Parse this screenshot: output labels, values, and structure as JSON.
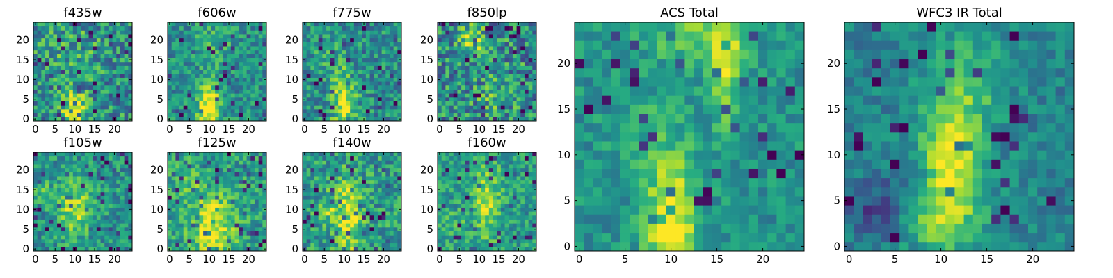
{
  "figure": {
    "colormap": "viridis",
    "color_stops": [
      "#440154",
      "#3b528b",
      "#21918c",
      "#5ec962",
      "#fde725"
    ]
  },
  "chart_data": [
    {
      "type": "heatmap",
      "title": "f435w",
      "grid": "25x25 pixel cutout",
      "xlim": [
        0,
        24
      ],
      "ylim": [
        0,
        24
      ],
      "x_ticks": [
        "0",
        "5",
        "10",
        "15",
        "20"
      ],
      "y_ticks": [
        "0",
        "5",
        "10",
        "15",
        "20"
      ],
      "source_center": [
        10,
        2
      ],
      "features": "noisy background, faint compact source at bottom center"
    },
    {
      "type": "heatmap",
      "title": "f606w",
      "grid": "25x25 pixel cutout",
      "xlim": [
        0,
        24
      ],
      "ylim": [
        0,
        24
      ],
      "x_ticks": [
        "0",
        "5",
        "10",
        "15",
        "20"
      ],
      "y_ticks": [
        "0",
        "5",
        "10",
        "15",
        "20"
      ],
      "source_center": [
        10,
        3
      ],
      "features": "bright source extending upward from bottom center"
    },
    {
      "type": "heatmap",
      "title": "f775w",
      "grid": "25x25 pixel cutout",
      "xlim": [
        0,
        24
      ],
      "ylim": [
        0,
        24
      ],
      "x_ticks": [
        "0",
        "5",
        "10",
        "15",
        "20"
      ],
      "y_ticks": [
        "0",
        "5",
        "10",
        "15",
        "20"
      ],
      "source_center": [
        10,
        3
      ],
      "features": "extended source along x ~ 10"
    },
    {
      "type": "heatmap",
      "title": "f850lp",
      "grid": "25x25 pixel cutout",
      "xlim": [
        0,
        24
      ],
      "ylim": [
        0,
        24
      ],
      "x_ticks": [
        "0",
        "5",
        "10",
        "15",
        "20"
      ],
      "y_ticks": [
        "0",
        "5",
        "10",
        "15",
        "20"
      ],
      "source_center": [
        8,
        20
      ],
      "features": "very noisy, patchy bright pixels"
    },
    {
      "type": "heatmap",
      "title": "f105w",
      "grid": "25x25 pixel cutout",
      "xlim": [
        0,
        24
      ],
      "ylim": [
        0,
        24
      ],
      "x_ticks": [
        "0",
        "5",
        "10",
        "15",
        "20"
      ],
      "y_ticks": [
        "0",
        "5",
        "10",
        "15",
        "20"
      ],
      "source_center": [
        10,
        10
      ],
      "features": "diffuse source near center"
    },
    {
      "type": "heatmap",
      "title": "f125w",
      "grid": "25x25 pixel cutout",
      "xlim": [
        0,
        24
      ],
      "ylim": [
        0,
        24
      ],
      "x_ticks": [
        "0",
        "5",
        "10",
        "15",
        "20"
      ],
      "y_ticks": [
        "0",
        "5",
        "10",
        "15",
        "20"
      ],
      "source_center": [
        11,
        6
      ],
      "features": "bright extended emission in lower center"
    },
    {
      "type": "heatmap",
      "title": "f140w",
      "grid": "25x25 pixel cutout",
      "xlim": [
        0,
        24
      ],
      "ylim": [
        0,
        24
      ],
      "x_ticks": [
        "0",
        "5",
        "10",
        "15",
        "20"
      ],
      "y_ticks": [
        "0",
        "5",
        "10",
        "15",
        "20"
      ],
      "source_center": [
        11,
        8
      ],
      "features": "elongated diagonal structure"
    },
    {
      "type": "heatmap",
      "title": "f160w",
      "grid": "25x25 pixel cutout",
      "xlim": [
        0,
        24
      ],
      "ylim": [
        0,
        24
      ],
      "x_ticks": [
        "0",
        "5",
        "10",
        "15",
        "20"
      ],
      "y_ticks": [
        "0",
        "5",
        "10",
        "15",
        "20"
      ],
      "source_center": [
        12,
        12
      ],
      "features": "smooth source with vertical extension"
    },
    {
      "type": "heatmap",
      "title": "ACS Total",
      "grid": "25x25 pixel cutout",
      "xlim": [
        0,
        24
      ],
      "ylim": [
        0,
        24
      ],
      "x_ticks": [
        "0",
        "5",
        "10",
        "15",
        "20"
      ],
      "y_ticks": [
        "0",
        "5",
        "10",
        "15",
        "20"
      ],
      "source_center": [
        10,
        2
      ],
      "features": "bright column at x ~ 9-11 from bottom, secondary streak at x ~ 16 near top"
    },
    {
      "type": "heatmap",
      "title": "WFC3 IR Total",
      "grid": "25x25 pixel cutout",
      "xlim": [
        0,
        24
      ],
      "ylim": [
        0,
        24
      ],
      "x_ticks": [
        "0",
        "5",
        "10",
        "15",
        "20"
      ],
      "y_ticks": [
        "0",
        "5",
        "10",
        "15",
        "20"
      ],
      "source_center": [
        11,
        9
      ],
      "features": "extended diagonal source from lower-left to upper-center"
    }
  ]
}
